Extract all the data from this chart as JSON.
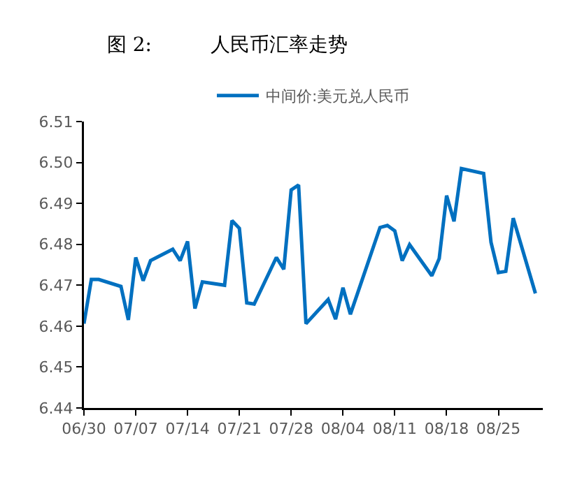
{
  "chart_data": {
    "type": "line",
    "title": "图 2:　　　人民币汇率走势",
    "x": [
      "--06-30",
      "--07-01",
      "--07-02",
      "--07-05",
      "--07-06",
      "--07-07",
      "--07-08",
      "--07-09",
      "--07-12",
      "--07-13",
      "--07-14",
      "--07-15",
      "--07-16",
      "--07-19",
      "--07-20",
      "--07-21",
      "--07-22",
      "--07-23",
      "--07-26",
      "--07-27",
      "--07-28",
      "--07-29",
      "--07-30",
      "--08-02",
      "--08-03",
      "--08-04",
      "--08-05",
      "--08-06",
      "--08-09",
      "--08-10",
      "--08-11",
      "--08-12",
      "--08-13",
      "--08-16",
      "--08-17",
      "--08-18",
      "--08-19",
      "--08-20",
      "--08-23",
      "--08-24",
      "--08-25",
      "--08-26",
      "--08-27",
      "--08-30"
    ],
    "series": [
      {
        "name": "中间价:美元兑人民币",
        "color": "#0070c0",
        "values": [
          6.4606,
          6.4714,
          6.4714,
          6.4697,
          6.4615,
          6.4768,
          6.4711,
          6.476,
          6.4788,
          6.476,
          6.4807,
          6.4643,
          6.4708,
          6.47,
          6.4858,
          6.4839,
          6.4657,
          6.4654,
          6.4768,
          6.4739,
          6.4933,
          6.4945,
          6.4606,
          6.4665,
          6.4617,
          6.4694,
          6.4629,
          6.4682,
          6.4841,
          6.4846,
          6.4833,
          6.476,
          6.4799,
          6.4723,
          6.4765,
          6.4919,
          6.4856,
          6.4985,
          6.4973,
          6.4805,
          6.4731,
          6.4734,
          6.4864,
          6.468
        ]
      }
    ],
    "xlim": [
      "--06-30",
      "--08-31"
    ],
    "xticks": [
      {
        "value": "--06-30",
        "label": "06/30"
      },
      {
        "value": "--07-07",
        "label": "07/07"
      },
      {
        "value": "--07-14",
        "label": "07/14"
      },
      {
        "value": "--07-21",
        "label": "07/21"
      },
      {
        "value": "--07-28",
        "label": "07/28"
      },
      {
        "value": "--08-04",
        "label": "08/04"
      },
      {
        "value": "--08-11",
        "label": "08/11"
      },
      {
        "value": "--08-18",
        "label": "08/18"
      },
      {
        "value": "--08-25",
        "label": "08/25"
      }
    ],
    "ylim": [
      6.44,
      6.51
    ],
    "yticks": [
      6.44,
      6.45,
      6.46,
      6.47,
      6.48,
      6.49,
      {
        "value": 6.5,
        "label": "6.50"
      },
      6.51
    ],
    "grid": false,
    "legend": "top",
    "marker": "none",
    "line_style": "solid"
  }
}
